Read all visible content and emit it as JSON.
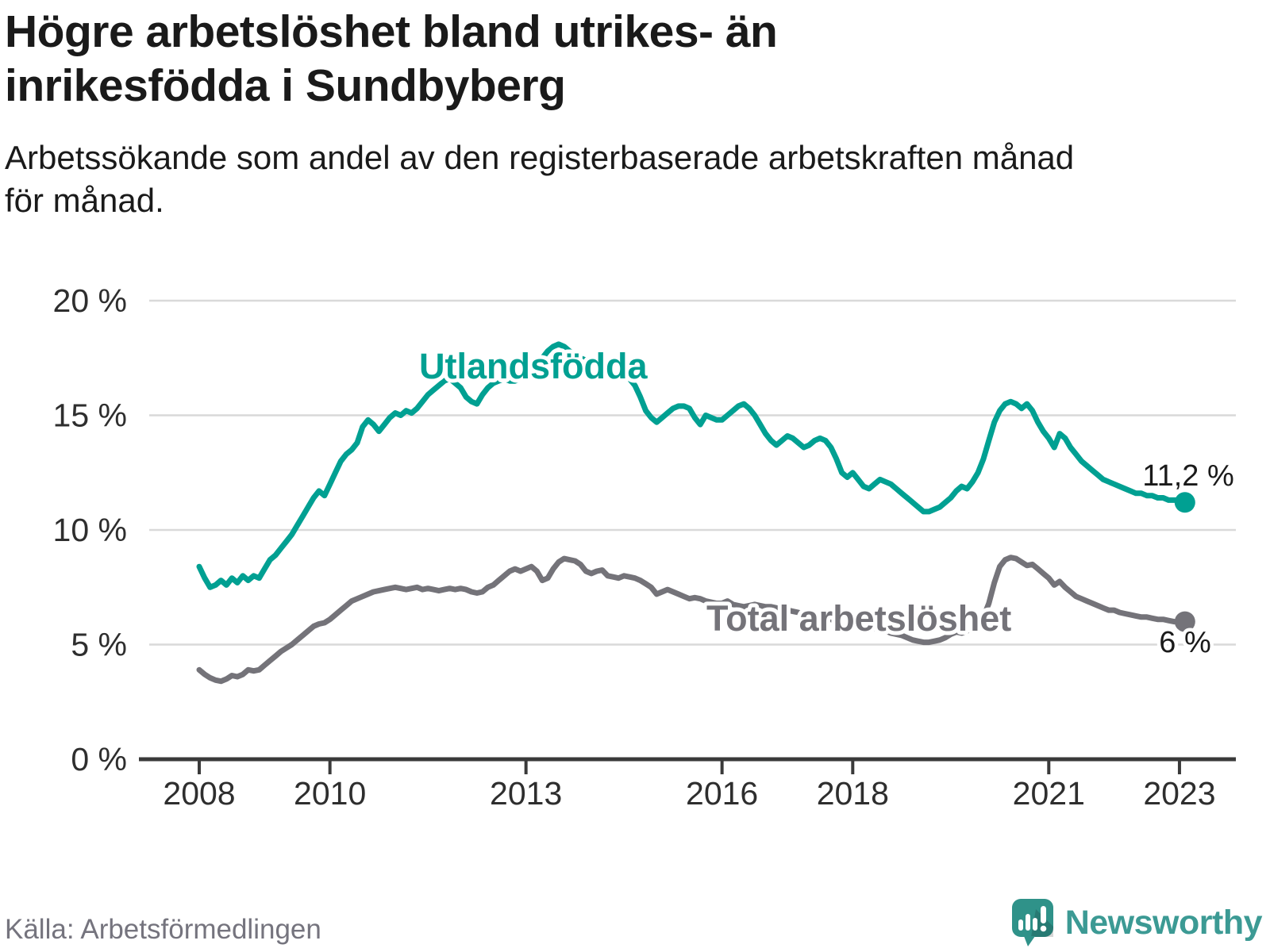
{
  "header": {
    "title_lines": [
      "Högre arbetslöshet bland utrikes- än",
      "inrikesfödda i Sundbyberg"
    ],
    "subtitle_lines": [
      "Arbetssökande som andel av den registerbaserade arbetskraften månad",
      "för månad."
    ]
  },
  "footer": {
    "source": "Källa: Arbetsförmedlingen",
    "brand": "Newsworthy"
  },
  "colors": {
    "teal": "#00a092",
    "gray": "#747379",
    "grid": "#d9d9d9",
    "axis": "#3a3a3a",
    "tick_text": "#2e2e2e",
    "annotation": "#1a1a1a",
    "brand_teal": "#3c9a94",
    "logo_bubble": "#2f9289"
  },
  "chart_data": {
    "type": "line",
    "title": "Högre arbetslöshet bland utrikes- än inrikesfödda i Sundbyberg",
    "subtitle": "Arbetssökande som andel av den registerbaserade arbetskraften månad för månad.",
    "x_unit": "month",
    "x_start_year": 2008,
    "x_end": "2023-02",
    "ylim": [
      0,
      20
    ],
    "grid": "horizontal",
    "yticks": [
      {
        "value": 0,
        "label": "0 %"
      },
      {
        "value": 5,
        "label": "5 %"
      },
      {
        "value": 10,
        "label": "10 %"
      },
      {
        "value": 15,
        "label": "15 %"
      },
      {
        "value": 20,
        "label": "20 %"
      }
    ],
    "xticks": [
      {
        "year": 2008,
        "label": "2008"
      },
      {
        "year": 2010,
        "label": "2010"
      },
      {
        "year": 2013,
        "label": "2013"
      },
      {
        "year": 2016,
        "label": "2016"
      },
      {
        "year": 2018,
        "label": "2018"
      },
      {
        "year": 2021,
        "label": "2021"
      },
      {
        "year": 2023,
        "label": "2023"
      }
    ],
    "series": [
      {
        "name": "Utlandsfödda",
        "color_key": "teal",
        "end_label": "11,2 %",
        "end_value": 11.2,
        "values": [
          8.4,
          7.9,
          7.5,
          7.6,
          7.8,
          7.6,
          7.9,
          7.7,
          8.0,
          7.8,
          8.0,
          7.9,
          8.3,
          8.7,
          8.9,
          9.2,
          9.5,
          9.8,
          10.2,
          10.6,
          11.0,
          11.4,
          11.7,
          11.5,
          12.0,
          12.5,
          13.0,
          13.3,
          13.5,
          13.8,
          14.5,
          14.8,
          14.6,
          14.3,
          14.6,
          14.9,
          15.1,
          15.0,
          15.2,
          15.1,
          15.3,
          15.6,
          15.9,
          16.1,
          16.3,
          16.5,
          16.6,
          16.4,
          16.2,
          15.8,
          15.6,
          15.5,
          15.9,
          16.2,
          16.4,
          16.5,
          16.6,
          16.5,
          16.5,
          16.6,
          16.7,
          16.9,
          17.2,
          17.5,
          17.8,
          18.0,
          18.1,
          18.0,
          17.8,
          17.6,
          17.5,
          17.4,
          17.3,
          17.2,
          17.1,
          17.0,
          16.9,
          16.8,
          16.8,
          16.6,
          16.3,
          15.8,
          15.2,
          14.9,
          14.7,
          14.9,
          15.1,
          15.3,
          15.4,
          15.4,
          15.3,
          14.9,
          14.6,
          15.0,
          14.9,
          14.8,
          14.8,
          15.0,
          15.2,
          15.4,
          15.5,
          15.3,
          15.0,
          14.6,
          14.2,
          13.9,
          13.7,
          13.9,
          14.1,
          14.0,
          13.8,
          13.6,
          13.7,
          13.9,
          14.0,
          13.9,
          13.6,
          13.1,
          12.5,
          12.3,
          12.5,
          12.2,
          11.9,
          11.8,
          12.0,
          12.2,
          12.1,
          12.0,
          11.8,
          11.6,
          11.4,
          11.2,
          11.0,
          10.8,
          10.8,
          10.9,
          11.0,
          11.2,
          11.4,
          11.7,
          11.9,
          11.8,
          12.1,
          12.5,
          13.1,
          13.9,
          14.7,
          15.2,
          15.5,
          15.6,
          15.5,
          15.3,
          15.5,
          15.2,
          14.7,
          14.3,
          14.0,
          13.6,
          14.2,
          14.0,
          13.6,
          13.3,
          13.0,
          12.8,
          12.6,
          12.4,
          12.2,
          12.1,
          12.0,
          11.9,
          11.8,
          11.7,
          11.6,
          11.6,
          11.5,
          11.5,
          11.4,
          11.4,
          11.3,
          11.3,
          11.3,
          11.2
        ]
      },
      {
        "name": "Total arbetslöshet",
        "color_key": "gray",
        "end_label": "6 %",
        "end_value": 6.0,
        "values": [
          3.9,
          3.7,
          3.55,
          3.45,
          3.4,
          3.5,
          3.65,
          3.6,
          3.7,
          3.9,
          3.85,
          3.9,
          4.1,
          4.3,
          4.5,
          4.7,
          4.85,
          5.0,
          5.2,
          5.4,
          5.6,
          5.8,
          5.9,
          5.95,
          6.1,
          6.3,
          6.5,
          6.7,
          6.9,
          7.0,
          7.1,
          7.2,
          7.3,
          7.35,
          7.4,
          7.45,
          7.5,
          7.45,
          7.4,
          7.45,
          7.5,
          7.4,
          7.45,
          7.4,
          7.35,
          7.4,
          7.45,
          7.4,
          7.45,
          7.4,
          7.3,
          7.25,
          7.3,
          7.5,
          7.6,
          7.8,
          8.0,
          8.2,
          8.3,
          8.2,
          8.3,
          8.4,
          8.2,
          7.8,
          7.9,
          8.3,
          8.6,
          8.75,
          8.7,
          8.65,
          8.5,
          8.2,
          8.1,
          8.2,
          8.25,
          8.0,
          7.95,
          7.9,
          8.0,
          7.95,
          7.9,
          7.8,
          7.65,
          7.5,
          7.2,
          7.3,
          7.4,
          7.3,
          7.2,
          7.1,
          7.0,
          7.05,
          7.0,
          6.9,
          6.85,
          6.8,
          6.8,
          6.9,
          6.75,
          6.7,
          6.65,
          6.7,
          6.75,
          6.7,
          6.65,
          6.65,
          6.6,
          6.55,
          6.5,
          6.45,
          6.4,
          6.3,
          6.25,
          6.2,
          6.2,
          6.15,
          6.1,
          6.0,
          5.9,
          5.85,
          5.8,
          5.75,
          5.7,
          5.75,
          5.7,
          5.65,
          5.6,
          5.5,
          5.45,
          5.4,
          5.3,
          5.2,
          5.15,
          5.1,
          5.1,
          5.15,
          5.2,
          5.3,
          5.45,
          5.55,
          5.5,
          5.6,
          5.8,
          5.9,
          6.2,
          6.8,
          7.7,
          8.4,
          8.7,
          8.8,
          8.75,
          8.6,
          8.45,
          8.5,
          8.3,
          8.1,
          7.9,
          7.6,
          7.75,
          7.5,
          7.3,
          7.1,
          7.0,
          6.9,
          6.8,
          6.7,
          6.6,
          6.5,
          6.5,
          6.4,
          6.35,
          6.3,
          6.25,
          6.2,
          6.2,
          6.15,
          6.1,
          6.1,
          6.05,
          6.0,
          6.0,
          6.0
        ]
      }
    ]
  }
}
